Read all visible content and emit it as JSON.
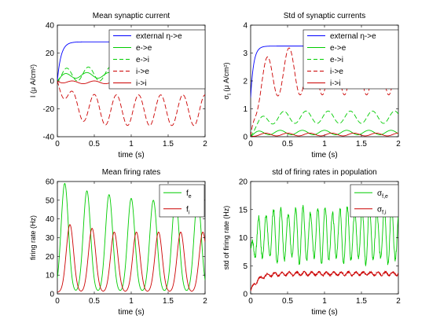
{
  "chart_data": [
    {
      "type": "line",
      "title": "Mean synaptic current",
      "xlabel": "time (s)",
      "ylabel": "I (μ A/cm²)",
      "xlim": [
        0,
        2
      ],
      "ylim": [
        -40,
        40
      ],
      "xticks": [
        "0",
        "0.5",
        "1",
        "1.5",
        "2"
      ],
      "yticks": [
        "-40",
        "-20",
        "0",
        "20",
        "40"
      ],
      "grid": false,
      "legend_position": "top-right",
      "series": [
        {
          "name": "external η->e",
          "color": "#0000ff",
          "dash": "solid",
          "shape": "rise",
          "base": 0,
          "amp": 28,
          "tau": 0.05
        },
        {
          "name": "e->e",
          "color": "#00cc00",
          "dash": "solid",
          "shape": "osc",
          "base": 4,
          "amp": 2,
          "rise": 0.05,
          "period": 0.3,
          "phase": 0.1
        },
        {
          "name": "e->i",
          "color": "#00cc00",
          "dash": "dashed",
          "shape": "osc",
          "base": 5,
          "amp": 5,
          "rise": 0.05,
          "period": 0.3,
          "phase": 0.12
        },
        {
          "name": "i->e",
          "color": "#cc0000",
          "dash": "dashed",
          "shape": "osc",
          "base": -21,
          "amp": 11,
          "rise": 0.15,
          "period": 0.3,
          "phase": 0.2
        },
        {
          "name": "i->i",
          "color": "#cc0000",
          "dash": "solid",
          "shape": "osc",
          "base": -1,
          "amp": 1,
          "rise": 0.05,
          "period": 0.3,
          "phase": 0.2
        }
      ]
    },
    {
      "type": "line",
      "title": "Std of synaptic currents",
      "xlabel": "time (s)",
      "ylabel": "σ_I (μ A/cm²)",
      "xlim": [
        0,
        2
      ],
      "ylim": [
        0,
        4
      ],
      "xticks": [
        "0",
        "0.5",
        "1",
        "1.5",
        "2"
      ],
      "yticks": [
        "0",
        "1",
        "2",
        "3",
        "4"
      ],
      "grid": false,
      "legend_position": "top-right",
      "series": [
        {
          "name": "external η->e",
          "color": "#0000ff",
          "dash": "solid",
          "shape": "rise",
          "base": 1.4,
          "amp": 1.85,
          "tau": 0.04
        },
        {
          "name": "e->e",
          "color": "#00cc00",
          "dash": "solid",
          "shape": "osc",
          "base": 0.15,
          "amp": 0.08,
          "rise": 0.05,
          "period": 0.3,
          "phase": 0.1
        },
        {
          "name": "e->i",
          "color": "#00cc00",
          "dash": "dashed",
          "shape": "osc",
          "base": 0.7,
          "amp": 0.22,
          "rise": 0.1,
          "period": 0.3,
          "phase": 0.15
        },
        {
          "name": "i->e",
          "color": "#cc0000",
          "dash": "dashed",
          "shape": "osc",
          "base": 2.35,
          "amp": 0.85,
          "rise": 0.1,
          "period": 0.3,
          "phase": 0.22
        },
        {
          "name": "i->i",
          "color": "#cc0000",
          "dash": "solid",
          "shape": "osc",
          "base": 0.08,
          "amp": 0.05,
          "rise": 0.05,
          "period": 0.3,
          "phase": 0.2
        }
      ]
    },
    {
      "type": "line",
      "title": "Mean firing rates",
      "xlabel": "time (s)",
      "ylabel": "firing rate (Hz)",
      "xlim": [
        0,
        2
      ],
      "ylim": [
        0,
        60
      ],
      "xticks": [
        "0",
        "0.5",
        "1",
        "1.5",
        "2"
      ],
      "yticks": [
        "0",
        "10",
        "20",
        "30",
        "40",
        "50",
        "60"
      ],
      "grid": false,
      "legend_position": "top-right",
      "series": [
        {
          "name": "f_e",
          "color": "#00cc00",
          "dash": "solid",
          "shape": "peaks",
          "start": 0.8,
          "troughs": [
            0.8,
            3
          ],
          "peaks": [
            59,
            55,
            53,
            51,
            50,
            51,
            51
          ],
          "times": [
            0.1,
            0.4,
            0.7,
            1.0,
            1.3,
            1.6,
            1.9
          ],
          "end": 11
        },
        {
          "name": "f_i",
          "color": "#cc0000",
          "dash": "solid",
          "shape": "peaks",
          "start": 0.5,
          "troughs": [
            0.8,
            1
          ],
          "peaks": [
            37,
            35,
            33,
            33,
            33,
            33,
            33
          ],
          "times": [
            0.17,
            0.47,
            0.77,
            1.07,
            1.37,
            1.67,
            1.97
          ],
          "end": 14
        }
      ]
    },
    {
      "type": "line",
      "title": "std of firing rates in population",
      "xlabel": "time (s)",
      "ylabel": "std of firing rate (Hz)",
      "xlim": [
        0,
        2
      ],
      "ylim": [
        0,
        20
      ],
      "xticks": [
        "0",
        "0.5",
        "1",
        "1.5",
        "2"
      ],
      "yticks": [
        "0",
        "5",
        "10",
        "15",
        "20"
      ],
      "grid": false,
      "legend_position": "top-right",
      "series": [
        {
          "name": "σ_f,e",
          "color": "#00cc00",
          "dash": "solid",
          "shape": "fastosc",
          "base": 10.5,
          "amp": 4.5,
          "rise": 0.02,
          "period": 0.1,
          "start": 8
        },
        {
          "name": "σ_f,i",
          "color": "#cc0000",
          "dash": "solid",
          "shape": "noisy",
          "base": 3.6,
          "amp": 0.3,
          "rise": 0.1,
          "start": 0.5
        }
      ]
    }
  ]
}
